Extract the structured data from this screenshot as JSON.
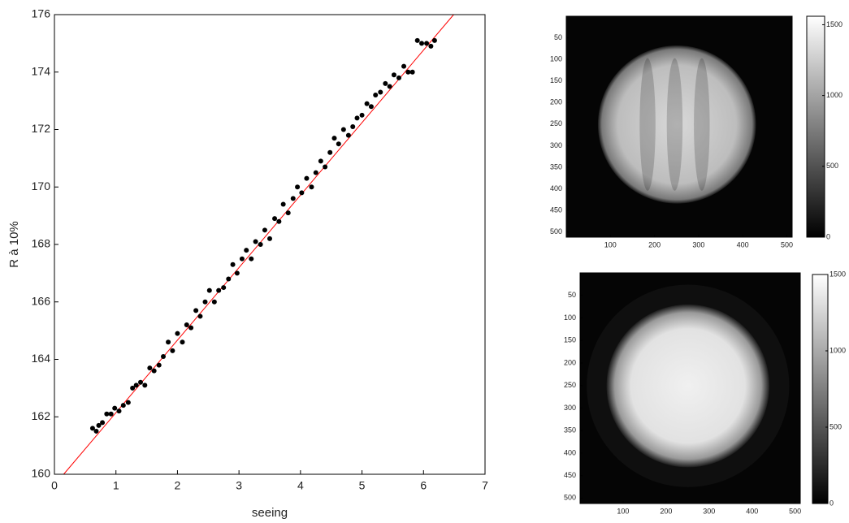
{
  "chart_data": [
    {
      "type": "scatter",
      "xlabel": "seeing",
      "ylabel": "R à 10%",
      "x": [
        0.62,
        0.68,
        0.72,
        0.78,
        0.85,
        0.92,
        0.98,
        1.05,
        1.12,
        1.2,
        1.27,
        1.33,
        1.4,
        1.47,
        1.55,
        1.62,
        1.7,
        1.77,
        1.85,
        1.92,
        2.0,
        2.08,
        2.15,
        2.22,
        2.3,
        2.37,
        2.45,
        2.52,
        2.6,
        2.67,
        2.75,
        2.83,
        2.9,
        2.97,
        3.05,
        3.12,
        3.2,
        3.27,
        3.35,
        3.42,
        3.5,
        3.58,
        3.65,
        3.72,
        3.8,
        3.88,
        3.95,
        4.02,
        4.1,
        4.18,
        4.25,
        4.33,
        4.4,
        4.48,
        4.55,
        4.62,
        4.7,
        4.78,
        4.85,
        4.92,
        5.0,
        5.08,
        5.15,
        5.22,
        5.3,
        5.38,
        5.45,
        5.52,
        5.6,
        5.68,
        5.75,
        5.82,
        5.9,
        5.97,
        6.05,
        6.12,
        6.18
      ],
      "values": [
        161.6,
        161.5,
        161.7,
        161.8,
        162.1,
        162.1,
        162.3,
        162.2,
        162.4,
        162.5,
        163.0,
        163.1,
        163.2,
        163.1,
        163.7,
        163.6,
        163.8,
        164.1,
        164.6,
        164.3,
        164.9,
        164.6,
        165.2,
        165.1,
        165.7,
        165.5,
        166.0,
        166.4,
        166.0,
        166.4,
        166.5,
        166.8,
        167.3,
        167.0,
        167.5,
        167.8,
        167.5,
        168.1,
        168.0,
        168.5,
        168.2,
        168.9,
        168.8,
        169.4,
        169.1,
        169.6,
        170.0,
        169.8,
        170.3,
        170.0,
        170.5,
        170.9,
        170.7,
        171.2,
        171.7,
        171.5,
        172.0,
        171.8,
        172.1,
        172.4,
        172.5,
        172.9,
        172.8,
        173.2,
        173.3,
        173.6,
        173.5,
        173.9,
        173.8,
        174.2,
        174.0,
        174.0,
        175.1,
        175.0,
        175.0,
        174.9,
        175.1
      ],
      "color": "#000000",
      "fit": {
        "x": [
          0.15,
          6.49
        ],
        "values": [
          160,
          176
        ],
        "color": "#ff0000"
      },
      "xlim": [
        0,
        7
      ],
      "xticks": [
        0,
        1,
        2,
        3,
        4,
        5,
        6,
        7
      ],
      "ylim": [
        160,
        176
      ],
      "yticks": [
        160,
        162,
        164,
        166,
        168,
        170,
        172,
        174,
        176
      ]
    },
    {
      "type": "image",
      "striped": true,
      "xlim": [
        0,
        512
      ],
      "xticks": [
        100,
        200,
        300,
        400,
        500
      ],
      "ylim": [
        0,
        512
      ],
      "yticks": [
        50,
        100,
        150,
        200,
        250,
        300,
        350,
        400,
        450,
        500
      ],
      "y_reversed": true,
      "clim": [
        0,
        1560
      ],
      "cticks": [
        0,
        500,
        1000,
        1500
      ]
    },
    {
      "type": "image",
      "striped": false,
      "xlim": [
        0,
        512
      ],
      "xticks": [
        100,
        200,
        300,
        400,
        500
      ],
      "ylim": [
        0,
        512
      ],
      "yticks": [
        50,
        100,
        150,
        200,
        250,
        300,
        350,
        400,
        450,
        500
      ],
      "y_reversed": true,
      "clim": [
        0,
        1500
      ],
      "cticks": [
        0,
        500,
        1000,
        1500
      ]
    }
  ]
}
